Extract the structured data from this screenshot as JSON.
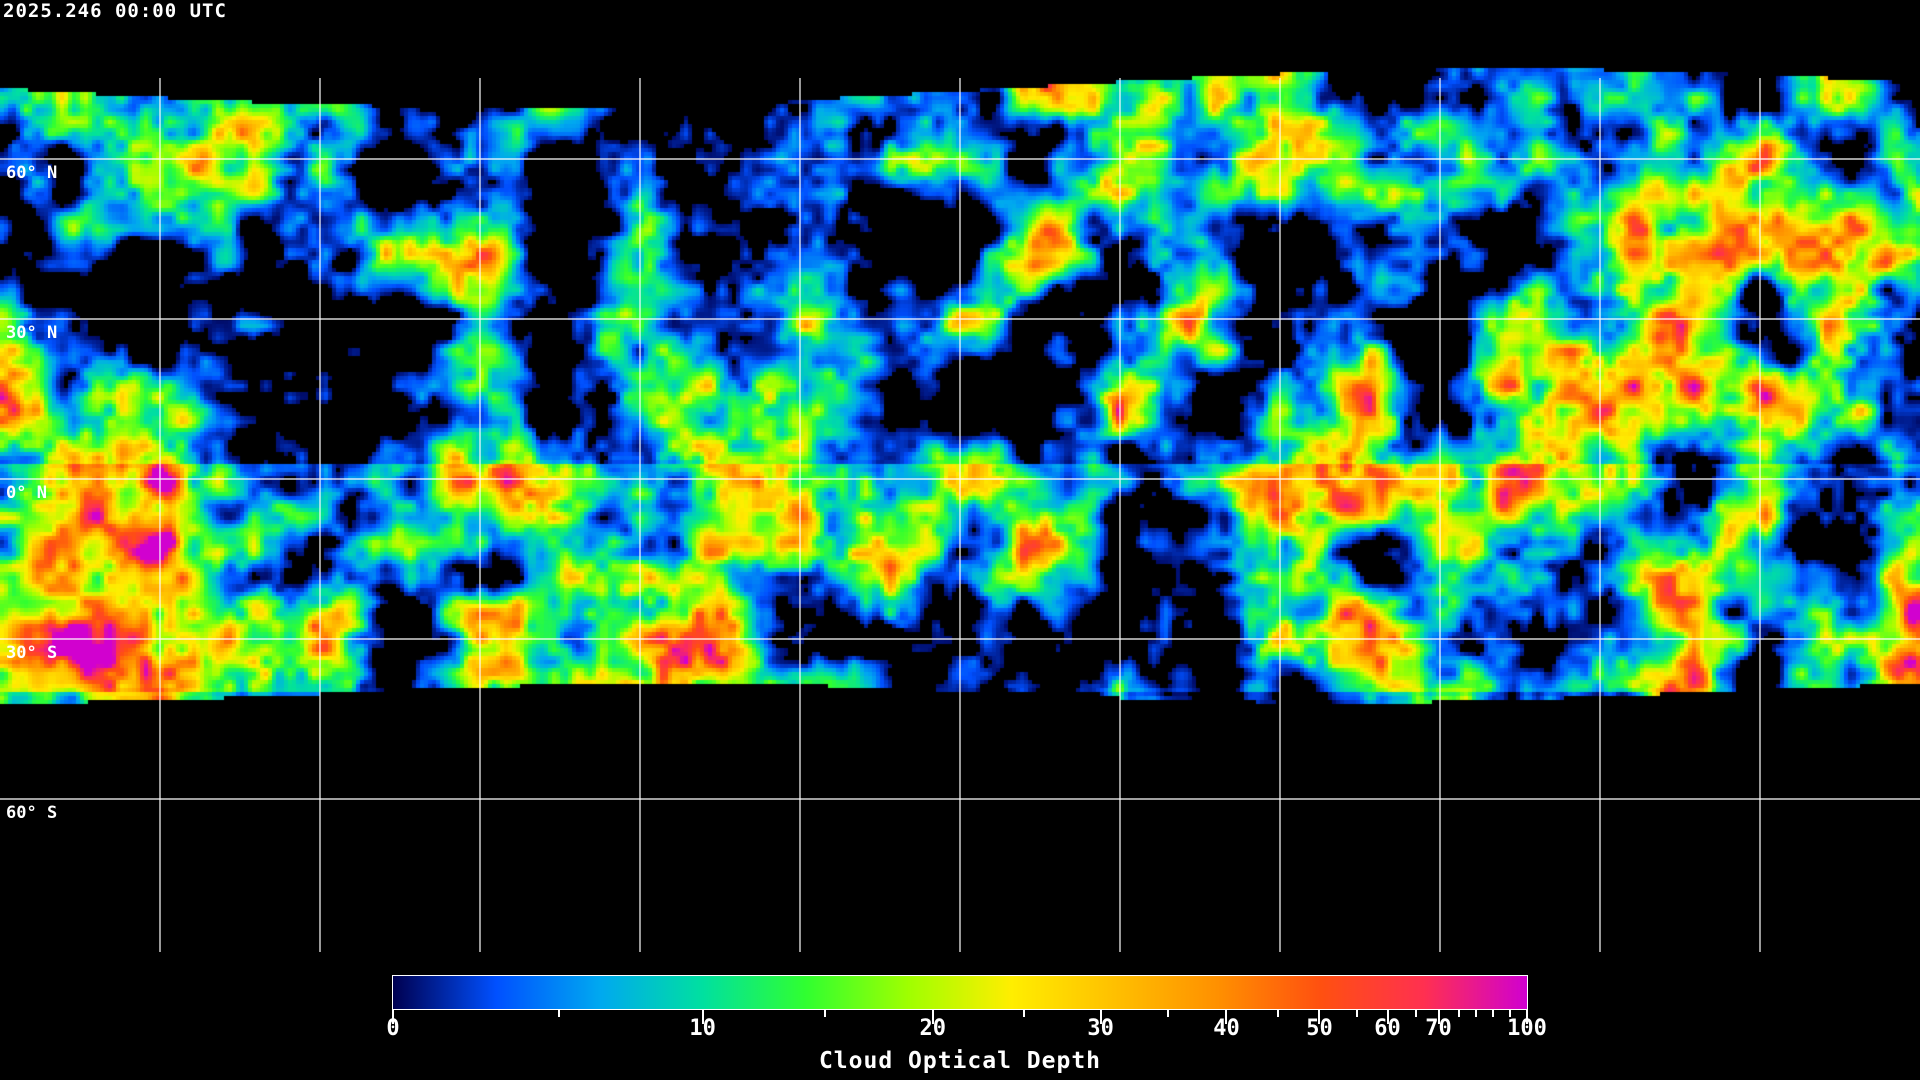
{
  "timestamp": "2025.246 00:00 UTC",
  "latitude_labels": [
    "60° N",
    "30° N",
    "0° N",
    "30° S",
    "60° S"
  ],
  "colorbar": {
    "title": "Cloud Optical Depth",
    "tick_labels": [
      "0",
      "10",
      "20",
      "30",
      "40",
      "50",
      "60",
      "70",
      "100"
    ],
    "range": [
      0,
      100
    ],
    "colors": [
      "#000050",
      "#0050ff",
      "#00a8f0",
      "#00e0a0",
      "#30ff30",
      "#a0ff00",
      "#ffee00",
      "#ffc000",
      "#ff9000",
      "#ff5010",
      "#ff3050",
      "#d000d0"
    ]
  },
  "grid": {
    "longitude_step_deg": 30,
    "latitude_step_deg": 30
  }
}
